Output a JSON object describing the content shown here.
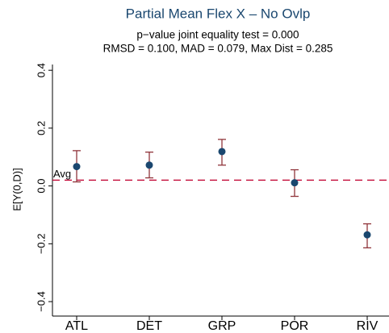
{
  "chart_data": {
    "type": "errorbar",
    "title": "Partial Mean Flex X – No Ovlp",
    "subtitle": [
      "p−value joint equality test = 0.000",
      "RMSD = 0.100, MAD = 0.079, Max Dist = 0.285"
    ],
    "y_label": "E[Y(0,D)]",
    "categories": [
      "ATL",
      "DET",
      "GRP",
      "POR",
      "RIV"
    ],
    "series": [
      {
        "color": "#1a476f",
        "ci_color": "#90353b",
        "values": [
          0.067,
          0.072,
          0.119,
          0.011,
          -0.169
        ],
        "lower": [
          0.014,
          0.028,
          0.072,
          -0.036,
          -0.214
        ],
        "upper": [
          0.122,
          0.117,
          0.161,
          0.056,
          -0.131
        ]
      }
    ],
    "reference_line": {
      "label": "Avg",
      "value": 0.02,
      "color": "#c10534"
    },
    "ylim": [
      -0.45,
      0.42
    ],
    "yticks": [
      0.4,
      0.2,
      {
        "value": 0,
        "label": "0.0"
      },
      {
        "value": -0.2,
        "label": "−0.2"
      },
      {
        "value": -0.4,
        "label": "−0.4"
      }
    ]
  }
}
